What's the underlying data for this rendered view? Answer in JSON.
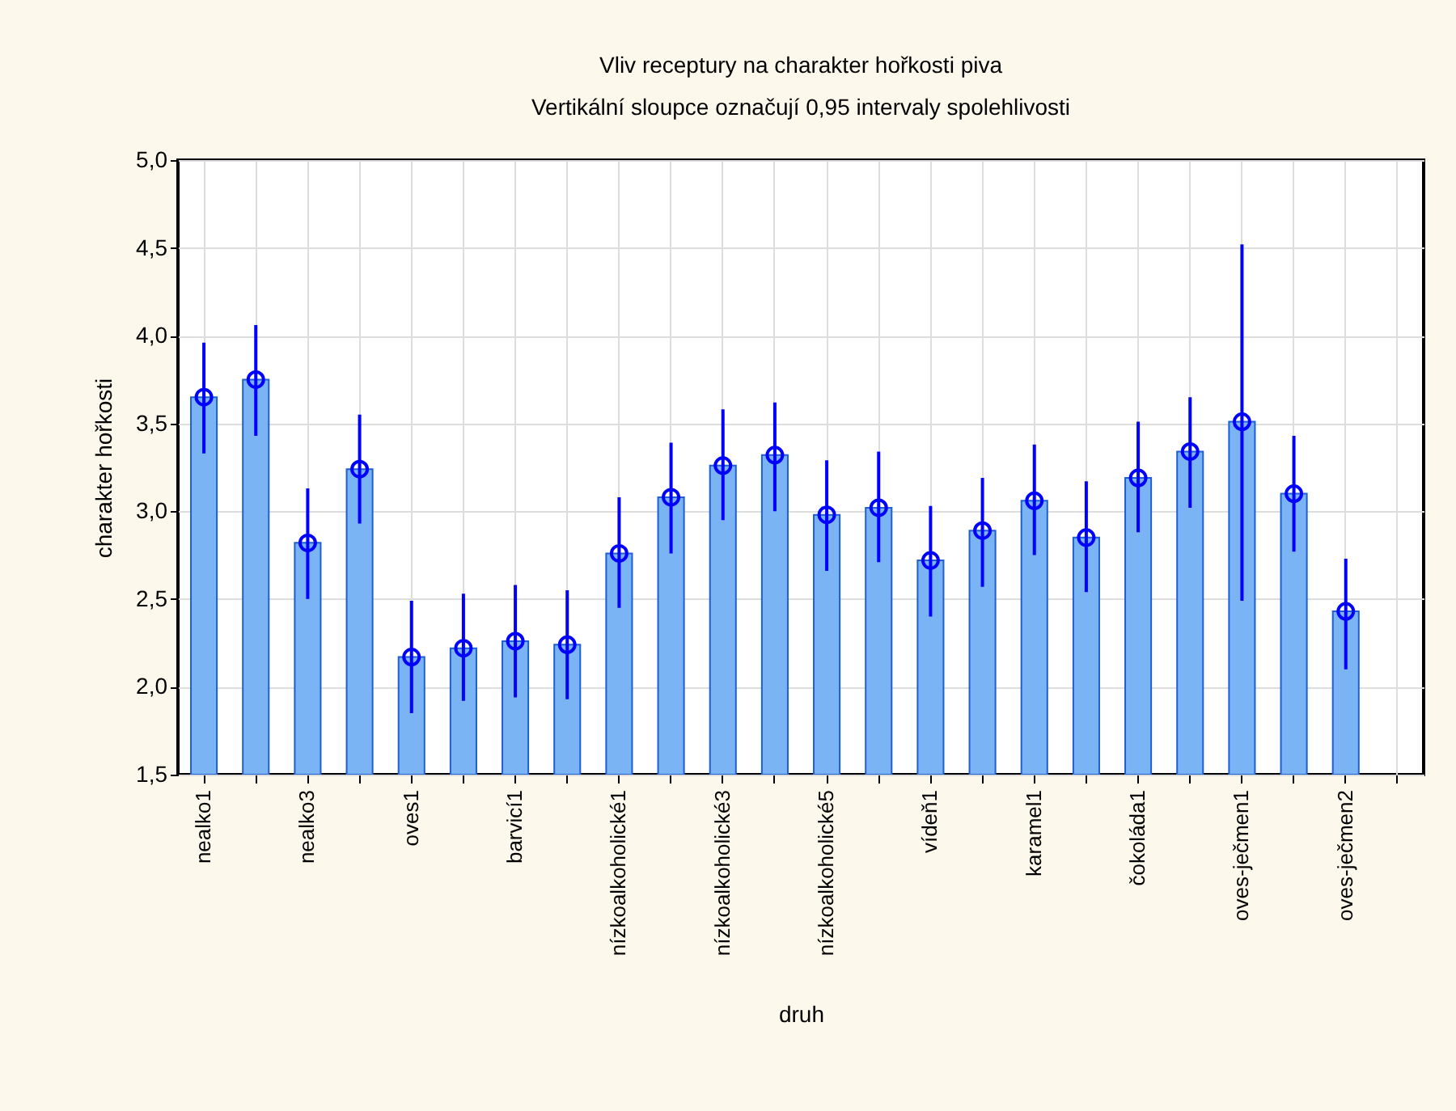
{
  "chart_data": {
    "type": "bar",
    "title": "Vliv receptury na charakter hořkosti piva",
    "subtitle": "Vertikální sloupce označují 0,95 intervaly spolehlivosti",
    "xlabel": "druh",
    "ylabel": "charakter hořkosti",
    "categories": [
      "nealko1",
      null,
      "nealko3",
      null,
      "oves1",
      null,
      "barvicí1",
      null,
      "nízkoalkoholické1",
      null,
      "nízkoalkoholické3",
      null,
      "nízkoalkoholické5",
      null,
      "vídeň1",
      null,
      "karamel1",
      null,
      "čokoláda1",
      null,
      "oves-ječmen1",
      null,
      "oves-ječmen2",
      null
    ],
    "series": [
      {
        "color": "#7ab4f5",
        "values": [
          3.65,
          3.75,
          2.82,
          3.24,
          2.17,
          2.22,
          2.26,
          2.24,
          2.76,
          3.08,
          3.26,
          3.32,
          2.98,
          3.02,
          2.72,
          2.89,
          3.06,
          2.85,
          3.19,
          3.34,
          3.51,
          3.1,
          2.43,
          null
        ],
        "errors": [
          [
            3.33,
            3.96
          ],
          [
            3.43,
            4.06
          ],
          [
            2.5,
            3.13
          ],
          [
            2.93,
            3.55
          ],
          [
            1.85,
            2.49
          ],
          [
            1.92,
            2.53
          ],
          [
            1.94,
            2.58
          ],
          [
            1.93,
            2.55
          ],
          [
            2.45,
            3.08
          ],
          [
            2.76,
            3.39
          ],
          [
            2.95,
            3.58
          ],
          [
            3.0,
            3.62
          ],
          [
            2.66,
            3.29
          ],
          [
            2.71,
            3.34
          ],
          [
            2.4,
            3.03
          ],
          [
            2.57,
            3.19
          ],
          [
            2.75,
            3.38
          ],
          [
            2.54,
            3.17
          ],
          [
            2.88,
            3.51
          ],
          [
            3.02,
            3.65
          ],
          [
            2.49,
            4.52
          ],
          [
            2.77,
            3.43
          ],
          [
            2.1,
            2.73
          ],
          null
        ]
      },
      {
        "type": "scatter",
        "color": "#0000ff",
        "marker": "circle",
        "values": [
          3.65,
          3.75,
          2.82,
          3.24,
          2.17,
          2.22,
          2.26,
          2.24,
          2.76,
          3.08,
          3.26,
          3.32,
          2.98,
          3.02,
          2.72,
          2.89,
          3.06,
          2.85,
          3.19,
          3.34,
          3.51,
          3.1,
          2.43,
          null
        ]
      }
    ],
    "ylim": [
      1.5,
      5.0
    ],
    "yticks": [
      {
        "value": 1.5,
        "label": "1,5"
      },
      {
        "value": 2.0,
        "label": "2,0"
      },
      {
        "value": 2.5,
        "label": "2,5"
      },
      {
        "value": 3.0,
        "label": "3,0"
      },
      {
        "value": 3.5,
        "label": "3,5"
      },
      {
        "value": 4.0,
        "label": "4,0"
      },
      {
        "value": 4.5,
        "label": "4,5"
      },
      {
        "value": 5.0,
        "label": "5,0"
      }
    ],
    "grid": true,
    "legend": false
  }
}
